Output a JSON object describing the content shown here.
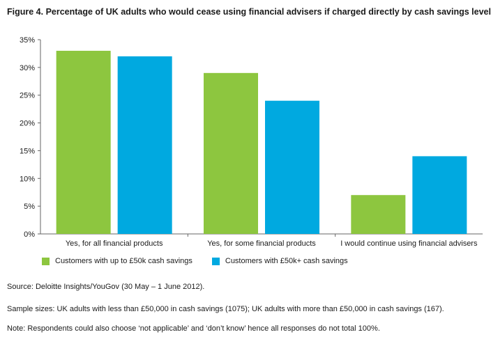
{
  "chart_data": {
    "type": "bar",
    "title": "Figure 4. Percentage of UK adults who would cease using financial advisers if charged directly by cash savings level",
    "categories": [
      "Yes, for all financial products",
      "Yes, for some financial products",
      "I would continue using financial advisers"
    ],
    "series": [
      {
        "name": "Customers with up to £50k cash savings",
        "values": [
          33,
          29,
          7
        ],
        "color": "#8dc63f"
      },
      {
        "name": "Customers with £50k+ cash savings",
        "values": [
          32,
          24,
          14
        ],
        "color": "#00a9e0"
      }
    ],
    "ylim": [
      0,
      35
    ],
    "yticks": [
      "0%",
      "5%",
      "10%",
      "15%",
      "20%",
      "25%",
      "30%",
      "35%"
    ],
    "xlabel": "",
    "ylabel": "",
    "grid": false,
    "legend": "bottom"
  },
  "notes": {
    "source": "Source: Deloitte Insights/YouGov (30 May – 1 June 2012).",
    "sample": "Sample sizes: UK adults with less than £50,000 in cash savings (1075); UK adults with more than £50,000 in cash savings (167).",
    "note": "Note: Respondents could also choose ‘not applicable’ and ‘don’t know’ hence all responses do not total 100%."
  }
}
